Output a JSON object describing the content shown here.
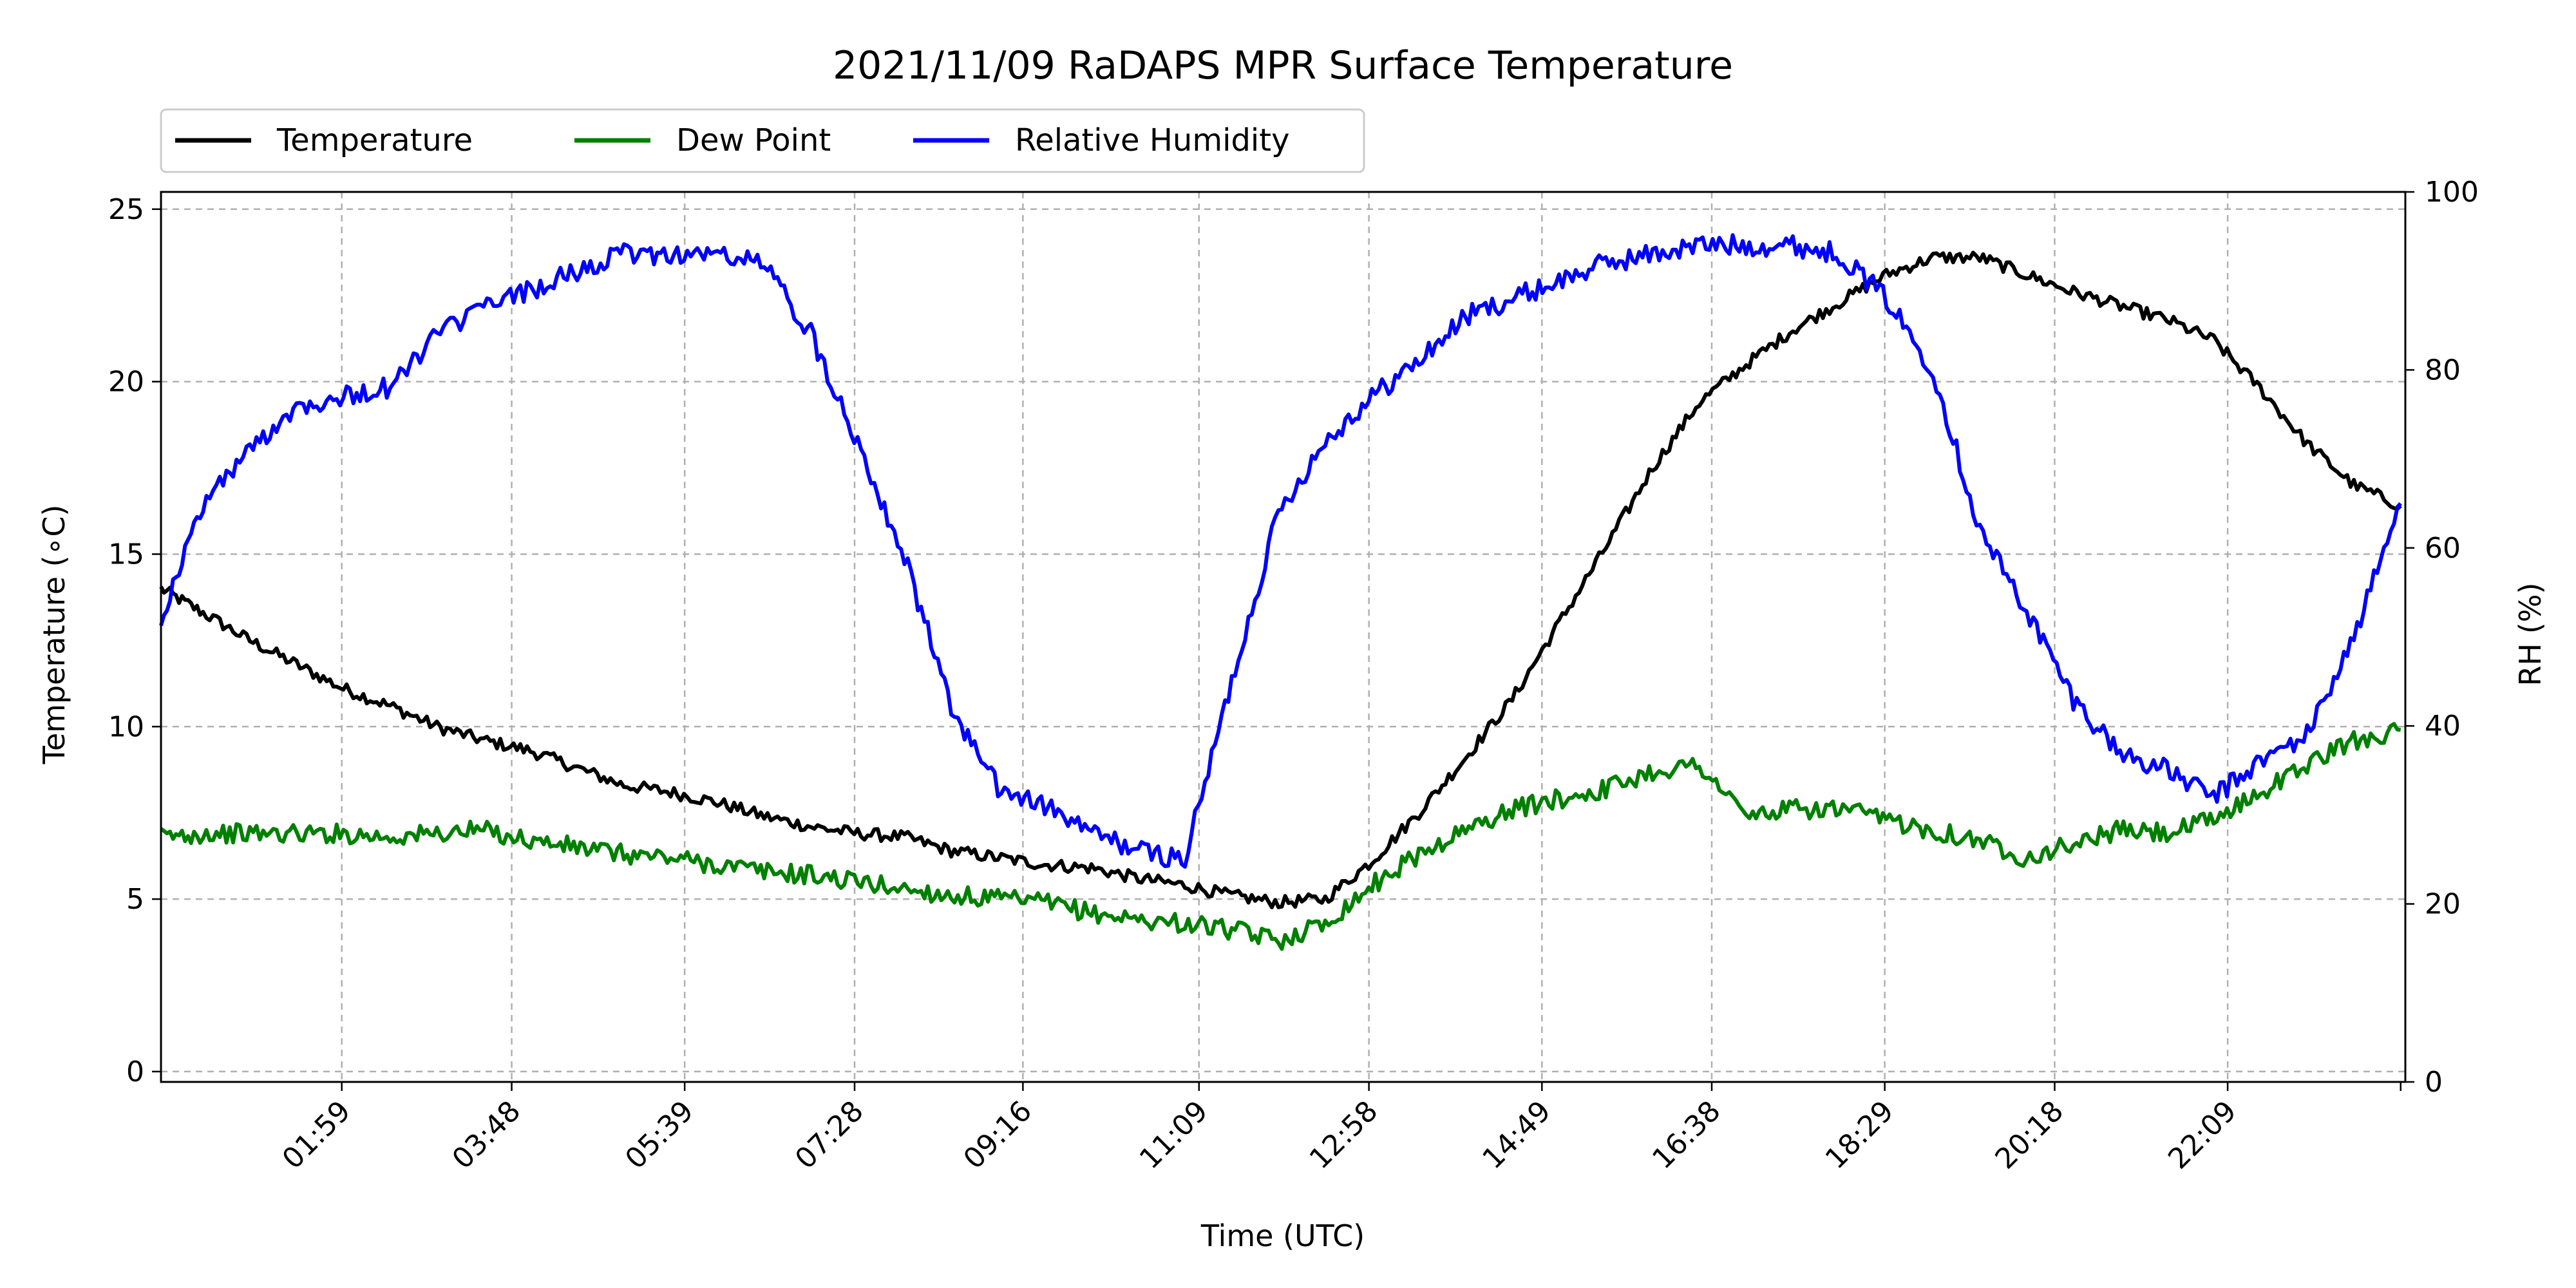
{
  "chart_data": {
    "type": "line",
    "title": "2021/11/09 RaDAPS MPR Surface Temperature",
    "xlabel": "Time (UTC)",
    "ylabel": "Temperature ($^\\circ$C)",
    "ylabel_display": "Temperature (∘C)",
    "y2label": "RH (%)",
    "ylim": [
      -0.3,
      25.5
    ],
    "y2lim": [
      0,
      100
    ],
    "xlim_hours": [
      0.05,
      24.05
    ],
    "x_tick_labels": [
      "01:59",
      "03:48",
      "05:39",
      "07:28",
      "09:16",
      "11:09",
      "12:58",
      "14:49",
      "16:38",
      "18:29",
      "20:18",
      "22:09"
    ],
    "x_tick_hours": [
      1.983,
      3.8,
      5.65,
      7.467,
      9.267,
      11.15,
      12.967,
      14.817,
      16.633,
      18.483,
      20.3,
      22.15
    ],
    "y_ticks": [
      0,
      5,
      10,
      15,
      20,
      25
    ],
    "y2_ticks": [
      0,
      20,
      40,
      60,
      80,
      100
    ],
    "grid": true,
    "legend_position": "top-left (above plot)",
    "series": [
      {
        "name": "Temperature",
        "color": "#000000",
        "axis": "left",
        "x_hours": [
          0.05,
          0.5,
          1.0,
          1.5,
          2.0,
          2.5,
          3.0,
          3.5,
          4.0,
          4.5,
          5.0,
          5.5,
          6.0,
          6.5,
          7.0,
          7.5,
          8.0,
          8.5,
          9.0,
          9.5,
          10.0,
          10.5,
          11.0,
          11.5,
          12.0,
          12.5,
          13.0,
          13.5,
          14.0,
          14.5,
          15.0,
          15.5,
          16.0,
          16.5,
          17.0,
          17.5,
          18.0,
          18.5,
          19.0,
          19.5,
          20.0,
          20.5,
          21.0,
          21.5,
          22.0,
          22.5,
          23.0,
          23.5,
          24.0
        ],
        "values": [
          14.0,
          13.3,
          12.5,
          11.8,
          11.1,
          10.6,
          10.0,
          9.6,
          9.3,
          8.8,
          8.3,
          8.1,
          7.8,
          7.4,
          7.1,
          6.9,
          6.8,
          6.4,
          6.2,
          6.0,
          5.9,
          5.6,
          5.4,
          5.1,
          4.9,
          5.0,
          6.1,
          7.5,
          9.1,
          10.8,
          13.0,
          15.2,
          17.5,
          19.4,
          20.5,
          21.5,
          22.3,
          23.1,
          23.6,
          23.6,
          23.1,
          22.6,
          22.2,
          21.8,
          21.2,
          19.8,
          18.2,
          17.0,
          16.4
        ]
      },
      {
        "name": "Dew Point",
        "color": "#008000",
        "axis": "left",
        "x_hours": [
          0.05,
          0.5,
          1.0,
          1.5,
          2.0,
          2.5,
          3.0,
          3.5,
          4.0,
          4.5,
          5.0,
          5.5,
          6.0,
          6.5,
          7.0,
          7.5,
          8.0,
          8.5,
          9.0,
          9.5,
          10.0,
          10.5,
          11.0,
          11.5,
          12.0,
          12.5,
          13.0,
          13.5,
          14.0,
          14.5,
          15.0,
          15.5,
          16.0,
          16.5,
          17.0,
          17.5,
          18.0,
          18.5,
          19.0,
          19.5,
          20.0,
          20.5,
          21.0,
          21.5,
          22.0,
          22.5,
          23.0,
          23.5,
          24.0
        ],
        "values": [
          6.8,
          6.9,
          6.9,
          6.9,
          6.9,
          6.8,
          6.9,
          7.0,
          6.7,
          6.5,
          6.3,
          6.2,
          6.0,
          5.8,
          5.7,
          5.5,
          5.3,
          5.1,
          5.0,
          4.9,
          4.6,
          4.4,
          4.3,
          4.1,
          3.8,
          4.3,
          5.4,
          6.3,
          7.0,
          7.6,
          7.9,
          8.2,
          8.7,
          8.9,
          7.4,
          7.6,
          7.6,
          7.3,
          7.0,
          6.7,
          6.2,
          6.6,
          7.0,
          6.9,
          7.3,
          8.1,
          8.9,
          9.6,
          9.9
        ]
      },
      {
        "name": "Relative Humidity",
        "color": "#0000ff",
        "axis": "right",
        "x_hours": [
          0.05,
          0.5,
          1.0,
          1.5,
          2.0,
          2.5,
          3.0,
          3.5,
          4.0,
          4.5,
          5.0,
          5.5,
          6.0,
          6.5,
          7.0,
          7.5,
          8.0,
          8.5,
          9.0,
          9.5,
          10.0,
          10.5,
          11.0,
          11.5,
          12.0,
          12.5,
          13.0,
          13.5,
          14.0,
          14.5,
          15.0,
          15.5,
          16.0,
          16.5,
          17.0,
          17.5,
          18.0,
          18.5,
          19.0,
          19.5,
          20.0,
          20.5,
          21.0,
          21.5,
          22.0,
          22.5,
          23.0,
          23.5,
          24.0
        ],
        "values": [
          52,
          65,
          71,
          76,
          77,
          78,
          84,
          87,
          89,
          91,
          93,
          93,
          93,
          92,
          84,
          72,
          59,
          42,
          33,
          31,
          28,
          26,
          25,
          45,
          64,
          72,
          77,
          81,
          86,
          88,
          90,
          92,
          93,
          94,
          94,
          94,
          93,
          88,
          80,
          62,
          53,
          43,
          37,
          35,
          32,
          36,
          39,
          50,
          65
        ]
      }
    ]
  }
}
